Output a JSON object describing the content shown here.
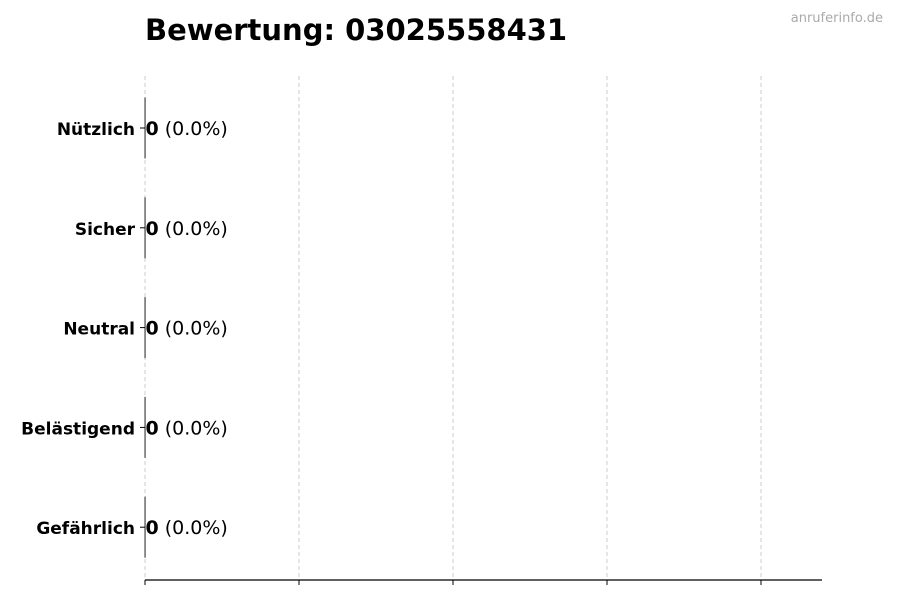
{
  "watermark": "anruferinfo.de",
  "chart_data": {
    "type": "bar",
    "orientation": "horizontal",
    "title": "Bewertung: 03025558431",
    "categories": [
      "Nützlich",
      "Sicher",
      "Neutral",
      "Belästigend",
      "Gefährlich"
    ],
    "values": [
      0,
      0,
      0,
      0,
      0
    ],
    "data_labels": [
      {
        "count": "0",
        "percent": "(0.0%)"
      },
      {
        "count": "0",
        "percent": "(0.0%)"
      },
      {
        "count": "0",
        "percent": "(0.0%)"
      },
      {
        "count": "0",
        "percent": "(0.0%)"
      },
      {
        "count": "0",
        "percent": "(0.0%)"
      }
    ],
    "xlabel": "",
    "ylabel": "",
    "x_tick_count": 5,
    "grid": "x, dashed",
    "legend": "none",
    "colors": {
      "bar_edge": "#333333",
      "grid": "#cccccc",
      "axis": "#000000"
    }
  }
}
